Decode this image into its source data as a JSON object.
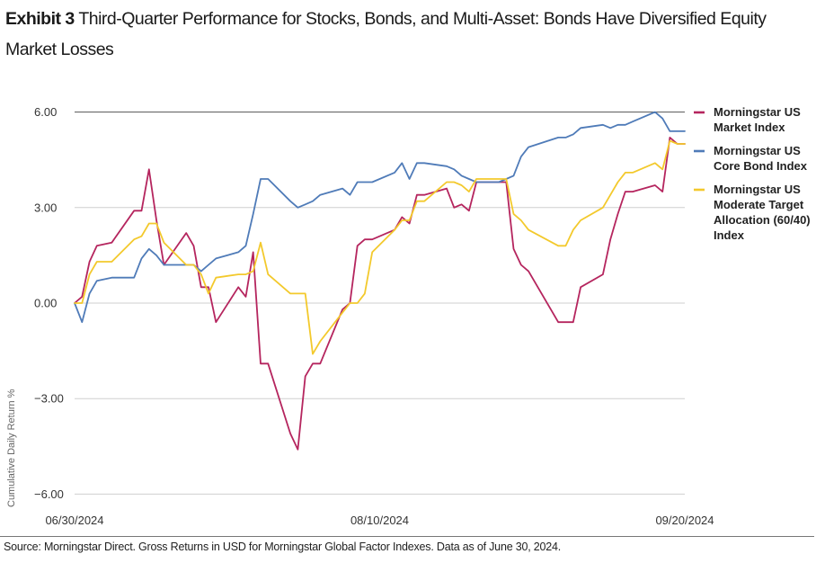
{
  "header": {
    "exhibit": "Exhibit 3",
    "title": " Third-Quarter Performance for Stocks, Bonds, and Multi-Asset: Bonds Have Diversified Equity Market Losses"
  },
  "source": "Source: Morningstar Direct. Gross Returns in USD for Morningstar Global Factor Indexes. Data as of June 30, 2024.",
  "chart_data": {
    "type": "line",
    "ylabel": "Cumulative Daily Return %",
    "ylim": [
      -6.3,
      6.3
    ],
    "yticks": [
      6.0,
      3.0,
      0.0,
      -3.0,
      -6.0
    ],
    "ytick_labels": [
      "6.00",
      "3.00",
      "0.00",
      "−3.00",
      "−6.00"
    ],
    "x": [
      "2024-06-30",
      "2024-07-01",
      "2024-07-02",
      "2024-07-03",
      "2024-07-05",
      "2024-07-08",
      "2024-07-09",
      "2024-07-10",
      "2024-07-11",
      "2024-07-12",
      "2024-07-15",
      "2024-07-16",
      "2024-07-17",
      "2024-07-18",
      "2024-07-19",
      "2024-07-22",
      "2024-07-23",
      "2024-07-24",
      "2024-07-25",
      "2024-07-26",
      "2024-07-29",
      "2024-07-30",
      "2024-07-31",
      "2024-08-01",
      "2024-08-02",
      "2024-08-05",
      "2024-08-06",
      "2024-08-07",
      "2024-08-08",
      "2024-08-09",
      "2024-08-12",
      "2024-08-13",
      "2024-08-14",
      "2024-08-15",
      "2024-08-16",
      "2024-08-19",
      "2024-08-20",
      "2024-08-21",
      "2024-08-22",
      "2024-08-23",
      "2024-08-26",
      "2024-08-27",
      "2024-08-28",
      "2024-08-29",
      "2024-08-30",
      "2024-09-03",
      "2024-09-04",
      "2024-09-05",
      "2024-09-06",
      "2024-09-09",
      "2024-09-10",
      "2024-09-11",
      "2024-09-12",
      "2024-09-13",
      "2024-09-16",
      "2024-09-17",
      "2024-09-18",
      "2024-09-19",
      "2024-09-20"
    ],
    "xtick_labels": [
      "06/30/2024",
      "08/10/2024",
      "09/20/2024"
    ],
    "xtick_values": [
      "2024-06-30",
      "2024-08-10",
      "2024-09-20"
    ],
    "xlim": [
      "2024-06-30",
      "2024-09-20"
    ],
    "grid": "horizontal",
    "legend_position": "right",
    "series": [
      {
        "name": "Morningstar US Market Index",
        "color": "#b5255e",
        "values": [
          0.0,
          0.2,
          1.3,
          1.8,
          1.9,
          2.9,
          2.9,
          4.2,
          2.6,
          1.2,
          2.2,
          1.8,
          0.5,
          0.5,
          -0.6,
          0.5,
          0.2,
          1.6,
          -1.9,
          -1.9,
          -4.1,
          -4.6,
          -2.3,
          -1.9,
          -1.9,
          -0.2,
          0.0,
          1.8,
          2.0,
          2.0,
          2.3,
          2.7,
          2.5,
          3.4,
          3.4,
          3.6,
          3.0,
          3.1,
          2.9,
          3.8,
          3.8,
          3.8,
          1.7,
          1.2,
          1.0,
          -0.6,
          -0.6,
          -0.6,
          0.5,
          0.9,
          2.0,
          2.8,
          3.5,
          3.5,
          3.7,
          3.5,
          5.2,
          5.0,
          5.0
        ],
        "legend_lines": [
          "Morningstar US",
          "Market Index"
        ]
      },
      {
        "name": "Morningstar US Core Bond Index",
        "color": "#4f7bb8",
        "values": [
          0.0,
          -0.6,
          0.3,
          0.7,
          0.8,
          0.8,
          1.4,
          1.7,
          1.5,
          1.2,
          1.2,
          1.2,
          1.0,
          1.2,
          1.4,
          1.6,
          1.8,
          2.8,
          3.9,
          3.9,
          3.2,
          3.0,
          3.1,
          3.2,
          3.4,
          3.6,
          3.4,
          3.8,
          3.8,
          3.8,
          4.1,
          4.4,
          3.9,
          4.4,
          4.4,
          4.3,
          4.2,
          4.0,
          3.9,
          3.8,
          3.8,
          3.9,
          4.0,
          4.6,
          4.9,
          5.2,
          5.2,
          5.3,
          5.5,
          5.6,
          5.5,
          5.6,
          5.6,
          5.7,
          6.0,
          5.8,
          5.4,
          5.4,
          5.4
        ],
        "legend_lines": [
          "Morningstar US",
          "Core Bond Index"
        ]
      },
      {
        "name": "Morningstar US Moderate Target Allocation (60/40) Index",
        "color": "#f3c92c",
        "values": [
          0.0,
          0.0,
          0.9,
          1.3,
          1.3,
          2.0,
          2.1,
          2.5,
          2.5,
          1.9,
          1.2,
          1.2,
          0.9,
          0.3,
          0.8,
          0.9,
          0.9,
          1.0,
          1.9,
          0.9,
          0.3,
          0.3,
          0.3,
          -1.6,
          -1.2,
          -0.3,
          0.0,
          0.0,
          0.3,
          1.6,
          2.3,
          2.6,
          2.6,
          3.2,
          3.2,
          3.8,
          3.8,
          3.7,
          3.5,
          3.9,
          3.9,
          3.9,
          2.8,
          2.6,
          2.3,
          1.8,
          1.8,
          2.3,
          2.6,
          3.0,
          3.4,
          3.8,
          4.1,
          4.1,
          4.4,
          4.2,
          5.1,
          5.0,
          5.0
        ],
        "legend_lines": [
          "Morningstar US",
          "Moderate Target",
          "Allocation (60/40)",
          "Index"
        ]
      }
    ]
  }
}
